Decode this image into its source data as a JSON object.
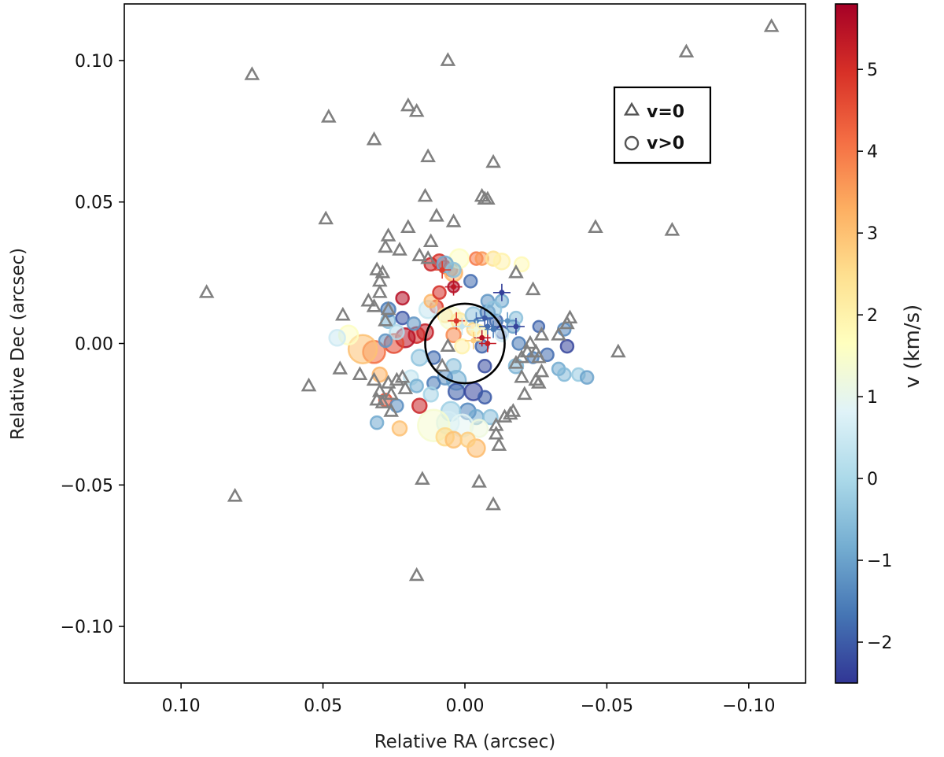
{
  "chart_data": {
    "type": "scatter",
    "xlabel": "Relative RA (arcsec)",
    "ylabel": "Relative Dec (arcsec)",
    "colorbar_label": "v (km/s)",
    "xlim": [
      0.12,
      -0.12
    ],
    "ylim": [
      -0.12,
      0.12
    ],
    "x_ticks": [
      0.1,
      0.05,
      0.0,
      -0.05,
      -0.1
    ],
    "x_tick_labels": [
      "0.10",
      "0.05",
      "0.00",
      "−0.05",
      "−0.10"
    ],
    "y_ticks": [
      0.1,
      0.05,
      0.0,
      -0.05,
      -0.1
    ],
    "y_tick_labels": [
      "0.10",
      "0.05",
      "0.00",
      "−0.05",
      "−0.10"
    ],
    "colorbar_range": [
      -2.5,
      5.8
    ],
    "colorbar_ticks": [
      5,
      4,
      3,
      2,
      1,
      0,
      -1,
      -2
    ],
    "colorbar_tick_labels": [
      "5",
      "4",
      "3",
      "2",
      "1",
      "0",
      "−1",
      "−2"
    ],
    "grid": false,
    "legend": {
      "position": "top-right",
      "entries": [
        {
          "marker": "triangle",
          "label": "v=0"
        },
        {
          "marker": "circle",
          "label": "v>0"
        }
      ]
    },
    "reference_circle": {
      "center": [
        0.0,
        0.0
      ],
      "radius": 0.014
    },
    "triangle_color": "#808080",
    "colormap": [
      "#313695",
      "#4575b4",
      "#74add1",
      "#abd9e9",
      "#e0f3f8",
      "#ffffbf",
      "#fee090",
      "#fdae61",
      "#f46d43",
      "#d73027",
      "#a50026"
    ],
    "series": [
      {
        "name": "v=0",
        "marker": "triangle",
        "points": [
          [
            -0.108,
            0.112
          ],
          [
            -0.078,
            0.103
          ],
          [
            -0.073,
            0.04
          ],
          [
            -0.054,
            -0.003
          ],
          [
            -0.046,
            0.041
          ],
          [
            0.006,
            0.1
          ],
          [
            0.075,
            0.095
          ],
          [
            0.048,
            0.08
          ],
          [
            0.02,
            0.084
          ],
          [
            0.017,
            0.082
          ],
          [
            0.032,
            0.072
          ],
          [
            0.013,
            0.066
          ],
          [
            -0.01,
            0.064
          ],
          [
            -0.006,
            0.052
          ],
          [
            -0.007,
            0.051
          ],
          [
            -0.008,
            0.051
          ],
          [
            0.014,
            0.052
          ],
          [
            0.01,
            0.045
          ],
          [
            0.004,
            0.043
          ],
          [
            0.049,
            0.044
          ],
          [
            0.02,
            0.041
          ],
          [
            0.027,
            0.038
          ],
          [
            0.028,
            0.034
          ],
          [
            0.023,
            0.033
          ],
          [
            0.012,
            0.036
          ],
          [
            0.013,
            0.03
          ],
          [
            0.016,
            0.031
          ],
          [
            0.031,
            0.026
          ],
          [
            0.029,
            0.025
          ],
          [
            0.03,
            0.022
          ],
          [
            0.03,
            0.018
          ],
          [
            0.034,
            0.015
          ],
          [
            0.032,
            0.013
          ],
          [
            0.027,
            0.012
          ],
          [
            0.043,
            0.01
          ],
          [
            0.028,
            0.008
          ],
          [
            0.091,
            0.018
          ],
          [
            -0.018,
            0.025
          ],
          [
            -0.024,
            0.019
          ],
          [
            -0.037,
            0.009
          ],
          [
            -0.036,
            0.007
          ],
          [
            -0.033,
            0.003
          ],
          [
            -0.027,
            0.003
          ],
          [
            -0.023,
            0.0
          ],
          [
            -0.025,
            -0.003
          ],
          [
            -0.022,
            -0.003
          ],
          [
            -0.026,
            -0.005
          ],
          [
            -0.02,
            -0.005
          ],
          [
            -0.018,
            -0.007
          ],
          [
            -0.027,
            -0.01
          ],
          [
            -0.025,
            -0.013
          ],
          [
            -0.02,
            -0.012
          ],
          [
            -0.021,
            -0.018
          ],
          [
            -0.026,
            -0.014
          ],
          [
            -0.014,
            -0.026
          ],
          [
            -0.016,
            -0.025
          ],
          [
            -0.017,
            -0.024
          ],
          [
            -0.011,
            -0.029
          ],
          [
            -0.011,
            -0.032
          ],
          [
            -0.012,
            -0.036
          ],
          [
            0.044,
            -0.009
          ],
          [
            0.037,
            -0.011
          ],
          [
            0.032,
            -0.013
          ],
          [
            0.027,
            -0.014
          ],
          [
            0.03,
            -0.017
          ],
          [
            0.026,
            -0.018
          ],
          [
            0.024,
            -0.013
          ],
          [
            0.022,
            -0.012
          ],
          [
            0.021,
            -0.016
          ],
          [
            0.031,
            -0.02
          ],
          [
            0.026,
            -0.024
          ],
          [
            0.029,
            -0.021
          ],
          [
            0.055,
            -0.015
          ],
          [
            0.015,
            -0.048
          ],
          [
            -0.005,
            -0.049
          ],
          [
            -0.01,
            -0.057
          ],
          [
            0.081,
            -0.054
          ],
          [
            0.017,
            -0.082
          ],
          [
            0.008,
            -0.008
          ],
          [
            0.006,
            -0.001
          ]
        ]
      },
      {
        "name": "v>0",
        "marker": "circle",
        "points": [
          [
            0.012,
            0.028,
            5.2,
            8
          ],
          [
            0.009,
            0.029,
            5.0,
            9
          ],
          [
            0.007,
            0.027,
            4.6,
            8
          ],
          [
            0.005,
            0.026,
            4.2,
            8
          ],
          [
            0.004,
            0.025,
            3.2,
            11
          ],
          [
            0.002,
            0.03,
            1.6,
            12
          ],
          [
            -0.004,
            0.03,
            4.0,
            8
          ],
          [
            -0.006,
            0.03,
            3.6,
            8
          ],
          [
            -0.01,
            0.03,
            2.4,
            9
          ],
          [
            -0.013,
            0.029,
            2.0,
            10
          ],
          [
            -0.02,
            0.028,
            1.8,
            9
          ],
          [
            0.007,
            0.028,
            -0.9,
            10
          ],
          [
            0.004,
            0.026,
            -0.5,
            9
          ],
          [
            0.022,
            0.016,
            5.5,
            8
          ],
          [
            0.01,
            0.013,
            4.8,
            8
          ],
          [
            0.004,
            0.02,
            5.6,
            7
          ],
          [
            0.014,
            0.004,
            5.3,
            10
          ],
          [
            0.017,
            0.003,
            5.1,
            10
          ],
          [
            0.021,
            0.002,
            5.5,
            12
          ],
          [
            0.025,
            0.0,
            4.6,
            12
          ],
          [
            0.032,
            -0.003,
            4.1,
            14
          ],
          [
            0.036,
            -0.002,
            3.0,
            18
          ],
          [
            0.041,
            0.003,
            1.6,
            12
          ],
          [
            0.045,
            0.002,
            0.5,
            10
          ],
          [
            0.027,
            0.008,
            -0.6,
            9
          ],
          [
            0.027,
            0.012,
            -1.6,
            9
          ],
          [
            0.022,
            0.009,
            -2.1,
            8
          ],
          [
            0.018,
            0.007,
            -1.2,
            8
          ],
          [
            0.013,
            0.012,
            0.4,
            11
          ],
          [
            0.012,
            0.015,
            3.2,
            8
          ],
          [
            0.007,
            0.01,
            2.6,
            9
          ],
          [
            0.005,
            0.009,
            1.4,
            14
          ],
          [
            0.002,
            0.008,
            2.2,
            10
          ],
          [
            -0.003,
            0.01,
            -0.4,
            10
          ],
          [
            -0.008,
            0.011,
            -1.5,
            9
          ],
          [
            -0.011,
            0.008,
            -1.8,
            8
          ],
          [
            -0.013,
            0.004,
            -2.2,
            8
          ],
          [
            -0.017,
            0.006,
            -1.0,
            8
          ],
          [
            -0.013,
            0.015,
            -0.9,
            8
          ],
          [
            -0.008,
            0.015,
            -1.2,
            8
          ],
          [
            -0.018,
            0.009,
            -0.5,
            8
          ],
          [
            -0.013,
            0.003,
            0.6,
            8
          ],
          [
            -0.019,
            0.0,
            -1.6,
            8
          ],
          [
            -0.007,
            -0.008,
            -2.2,
            8
          ],
          [
            -0.006,
            -0.001,
            -1.9,
            8
          ],
          [
            -0.003,
            0.005,
            2.6,
            8
          ],
          [
            0.004,
            0.003,
            3.8,
            9
          ],
          [
            0.001,
            -0.001,
            2.0,
            9
          ],
          [
            -0.018,
            -0.008,
            -0.7,
            9
          ],
          [
            -0.029,
            -0.004,
            -1.8,
            8
          ],
          [
            -0.033,
            -0.009,
            -0.9,
            8
          ],
          [
            -0.035,
            -0.011,
            -0.6,
            8
          ],
          [
            -0.04,
            -0.011,
            -0.3,
            8
          ],
          [
            -0.043,
            -0.012,
            -1.0,
            8
          ],
          [
            -0.035,
            0.005,
            -1.4,
            8
          ],
          [
            -0.036,
            -0.001,
            -2.3,
            8
          ],
          [
            -0.024,
            -0.005,
            -1.5,
            7
          ],
          [
            -0.026,
            0.006,
            -1.9,
            7
          ],
          [
            0.011,
            -0.005,
            -1.8,
            8
          ],
          [
            0.004,
            -0.008,
            -0.5,
            9
          ],
          [
            0.003,
            -0.013,
            -0.7,
            12
          ],
          [
            0.007,
            -0.012,
            -1.2,
            9
          ],
          [
            0.011,
            -0.014,
            -1.6,
            8
          ],
          [
            0.003,
            -0.017,
            -2.0,
            10
          ],
          [
            -0.003,
            -0.017,
            -2.3,
            11
          ],
          [
            -0.007,
            -0.019,
            -2.0,
            8
          ],
          [
            -0.001,
            -0.024,
            -1.4,
            10
          ],
          [
            -0.004,
            -0.026,
            -0.9,
            9
          ],
          [
            -0.009,
            -0.026,
            -0.5,
            9
          ],
          [
            0.005,
            -0.024,
            -0.2,
            12
          ],
          [
            0.006,
            -0.028,
            0.6,
            14
          ],
          [
            0.011,
            -0.029,
            1.4,
            20
          ],
          [
            0.001,
            -0.029,
            0.9,
            14
          ],
          [
            -0.005,
            -0.03,
            1.2,
            11
          ],
          [
            0.007,
            -0.033,
            2.6,
            11
          ],
          [
            0.004,
            -0.034,
            3.0,
            10
          ],
          [
            -0.004,
            -0.037,
            3.1,
            11
          ],
          [
            -0.001,
            -0.034,
            2.8,
            9
          ],
          [
            0.012,
            -0.018,
            -0.1,
            9
          ],
          [
            0.019,
            -0.012,
            0.3,
            9
          ],
          [
            0.017,
            -0.015,
            -0.8,
            8
          ],
          [
            0.016,
            -0.022,
            5.2,
            9
          ],
          [
            0.028,
            -0.02,
            4.5,
            8
          ],
          [
            0.024,
            -0.022,
            -1.3,
            8
          ],
          [
            0.031,
            -0.028,
            -0.9,
            8
          ],
          [
            0.023,
            -0.03,
            3.0,
            9
          ],
          [
            0.016,
            -0.005,
            -0.4,
            10
          ],
          [
            0.03,
            -0.011,
            3.2,
            9
          ],
          [
            0.024,
            0.004,
            0.1,
            9
          ],
          [
            0.028,
            0.001,
            -1.2,
            8
          ],
          [
            -0.002,
            0.022,
            -1.8,
            8
          ],
          [
            -0.01,
            0.012,
            -0.4,
            10
          ],
          [
            0.009,
            0.018,
            5.0,
            8
          ],
          [
            -0.005,
            0.004,
            2.0,
            9
          ]
        ]
      },
      {
        "name": "crosses",
        "marker": "plus",
        "points": [
          [
            0.004,
            0.02,
            5.4
          ],
          [
            -0.013,
            0.018,
            -2.4
          ],
          [
            0.008,
            0.026,
            4.8
          ],
          [
            -0.004,
            0.008,
            -1.5
          ],
          [
            -0.008,
            0.006,
            -1.8
          ],
          [
            -0.006,
            0.002,
            5.5
          ],
          [
            -0.008,
            0.0,
            5.3
          ],
          [
            0.003,
            0.008,
            4.9
          ],
          [
            -0.004,
            0.005,
            1.2
          ],
          [
            -0.01,
            0.005,
            -1.6
          ],
          [
            -0.015,
            0.008,
            -1.2
          ],
          [
            -0.018,
            0.006,
            -2.3
          ],
          [
            -0.003,
            0.001,
            2.8
          ],
          [
            -0.007,
            0.009,
            -2.0
          ],
          [
            0.001,
            0.006,
            0.4
          ]
        ]
      }
    ]
  }
}
